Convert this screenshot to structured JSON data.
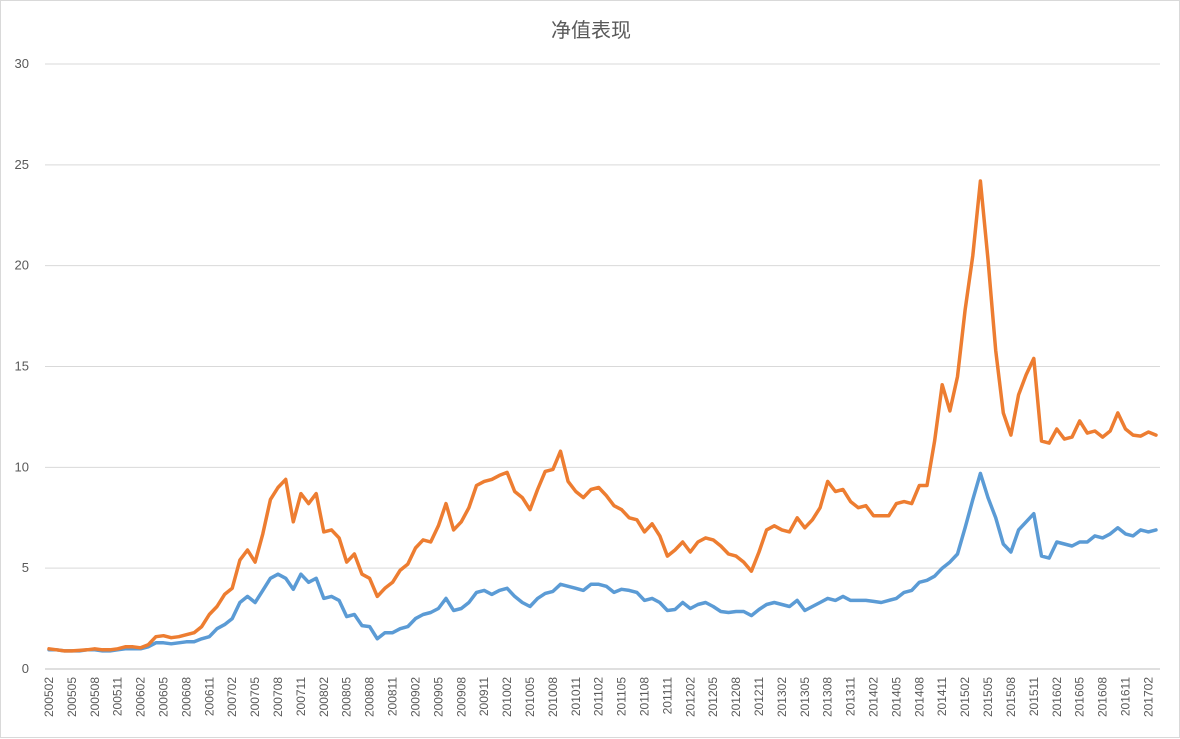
{
  "chart_data": {
    "type": "line",
    "title": "净值表现",
    "ylim": [
      0,
      30
    ],
    "yticks": [
      0,
      5,
      10,
      15,
      20,
      25,
      30
    ],
    "grid": true,
    "legend": "none",
    "xticks": [
      "200502",
      "200505",
      "200508",
      "200511",
      "200602",
      "200605",
      "200608",
      "200611",
      "200702",
      "200705",
      "200708",
      "200711",
      "200802",
      "200805",
      "200808",
      "200811",
      "200902",
      "200905",
      "200908",
      "200911",
      "201002",
      "201005",
      "201008",
      "201011",
      "201102",
      "201105",
      "201108",
      "201111",
      "201202",
      "201205",
      "201208",
      "201211",
      "201302",
      "201305",
      "201308",
      "201311",
      "201402",
      "201405",
      "201408",
      "201411",
      "201502",
      "201505",
      "201508",
      "201511",
      "201602",
      "201605",
      "201608",
      "201611",
      "201702"
    ],
    "colors": [
      "#ed7d31",
      "#5b9bd5"
    ],
    "series": [
      {
        "values": [
          1.0,
          0.95,
          0.9,
          0.9,
          0.92,
          0.95,
          1.0,
          0.95,
          0.95,
          1.0,
          1.1,
          1.1,
          1.05,
          1.2,
          1.6,
          1.65,
          1.55,
          1.6,
          1.7,
          1.8,
          2.1,
          2.7,
          3.1,
          3.7,
          4.0,
          5.4,
          5.9,
          5.3,
          6.7,
          8.4,
          9.0,
          9.4,
          7.3,
          8.7,
          8.2,
          8.7,
          6.8,
          6.9,
          6.5,
          5.3,
          5.7,
          4.7,
          4.5,
          3.6,
          4.0,
          4.3,
          4.9,
          5.2,
          6.0,
          6.4,
          6.3,
          7.1,
          8.2,
          6.9,
          7.3,
          8.0,
          9.1,
          9.3,
          9.4,
          9.6,
          9.75,
          8.8,
          8.5,
          7.9,
          8.9,
          9.8,
          9.9,
          10.8,
          9.3,
          8.8,
          8.5,
          8.9,
          9.0,
          8.6,
          8.1,
          7.9,
          7.5,
          7.4,
          6.8,
          7.2,
          6.6,
          5.6,
          5.9,
          6.3,
          5.8,
          6.3,
          6.5,
          6.4,
          6.1,
          5.7,
          5.6,
          5.3,
          4.85,
          5.8,
          6.9,
          7.1,
          6.9,
          6.8,
          7.5,
          7.0,
          7.4,
          8.0,
          9.3,
          8.8,
          8.9,
          8.3,
          8.0,
          8.1,
          7.6,
          7.6,
          7.6,
          8.2,
          8.3,
          8.2,
          9.1,
          9.1,
          11.3,
          14.1,
          12.8,
          14.5,
          17.8,
          20.5,
          24.2,
          20.3,
          15.8,
          12.7,
          11.6,
          13.6,
          14.6,
          15.4,
          11.3,
          11.2,
          11.9,
          11.4,
          11.5,
          12.3,
          11.7,
          11.8,
          11.5,
          11.8,
          12.7,
          11.9,
          11.6,
          11.55,
          11.75,
          11.6
        ]
      },
      {
        "values": [
          0.95,
          0.95,
          0.9,
          0.9,
          0.9,
          0.95,
          0.95,
          0.9,
          0.9,
          0.95,
          1.0,
          1.0,
          1.0,
          1.1,
          1.3,
          1.3,
          1.25,
          1.3,
          1.35,
          1.35,
          1.5,
          1.6,
          2.0,
          2.2,
          2.5,
          3.3,
          3.6,
          3.3,
          3.9,
          4.5,
          4.7,
          4.5,
          3.95,
          4.7,
          4.3,
          4.5,
          3.5,
          3.6,
          3.4,
          2.6,
          2.7,
          2.15,
          2.1,
          1.5,
          1.8,
          1.8,
          2.0,
          2.1,
          2.5,
          2.7,
          2.8,
          3.0,
          3.5,
          2.9,
          3.0,
          3.3,
          3.8,
          3.9,
          3.7,
          3.9,
          4.0,
          3.6,
          3.3,
          3.1,
          3.5,
          3.75,
          3.85,
          4.2,
          4.1,
          4.0,
          3.9,
          4.2,
          4.2,
          4.1,
          3.8,
          3.95,
          3.9,
          3.8,
          3.4,
          3.5,
          3.3,
          2.9,
          2.95,
          3.3,
          3.0,
          3.2,
          3.3,
          3.1,
          2.85,
          2.8,
          2.85,
          2.85,
          2.65,
          2.95,
          3.2,
          3.3,
          3.2,
          3.1,
          3.4,
          2.9,
          3.1,
          3.3,
          3.5,
          3.4,
          3.6,
          3.4,
          3.4,
          3.4,
          3.35,
          3.3,
          3.4,
          3.5,
          3.8,
          3.9,
          4.3,
          4.4,
          4.6,
          5.0,
          5.3,
          5.7,
          7.0,
          8.4,
          9.7,
          8.5,
          7.5,
          6.2,
          5.8,
          6.9,
          7.3,
          7.7,
          5.6,
          5.5,
          6.3,
          6.2,
          6.1,
          6.3,
          6.3,
          6.6,
          6.5,
          6.7,
          7.0,
          6.7,
          6.6,
          6.9,
          6.8,
          6.9
        ]
      }
    ]
  }
}
